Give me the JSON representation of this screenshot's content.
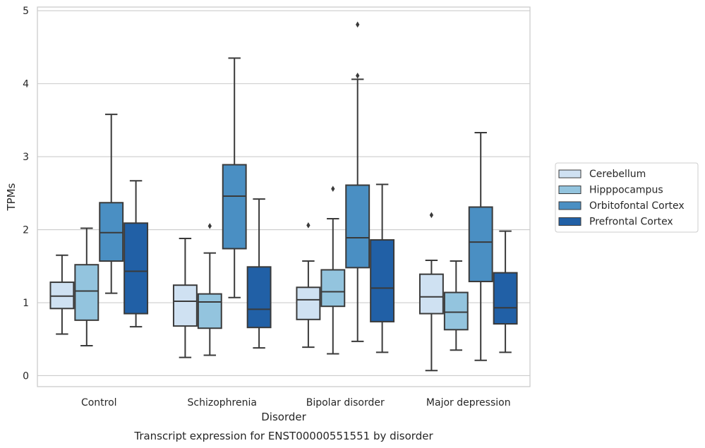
{
  "chart_data": {
    "type": "box",
    "title": "",
    "caption": "Transcript expression for ENST00000551551 by disorder",
    "xlabel": "Disorder",
    "ylabel": "TPMs",
    "ylim": [
      -0.15,
      5.05
    ],
    "yticks": [
      0,
      1,
      2,
      3,
      4,
      5
    ],
    "grid": "horizontal",
    "legend_position": "right",
    "categories": [
      "Control",
      "Schizophrenia",
      "Bipolar disorder",
      "Major depression"
    ],
    "series": [
      {
        "name": "Cerebellum",
        "color": "#cfe1f2",
        "boxes": [
          {
            "low": 0.57,
            "q1": 0.92,
            "median": 1.09,
            "q3": 1.28,
            "high": 1.65,
            "outliers": []
          },
          {
            "low": 0.25,
            "q1": 0.68,
            "median": 1.02,
            "q3": 1.24,
            "high": 1.88,
            "outliers": []
          },
          {
            "low": 0.39,
            "q1": 0.77,
            "median": 1.04,
            "q3": 1.21,
            "high": 1.57,
            "outliers": [
              2.06
            ]
          },
          {
            "low": 0.07,
            "q1": 0.85,
            "median": 1.08,
            "q3": 1.39,
            "high": 1.58,
            "outliers": [
              2.2
            ]
          }
        ]
      },
      {
        "name": "Hipppocampus",
        "color": "#93c4de",
        "boxes": [
          {
            "low": 0.41,
            "q1": 0.76,
            "median": 1.16,
            "q3": 1.52,
            "high": 2.02,
            "outliers": []
          },
          {
            "low": 0.28,
            "q1": 0.65,
            "median": 1.01,
            "q3": 1.12,
            "high": 1.68,
            "outliers": [
              2.05
            ]
          },
          {
            "low": 0.3,
            "q1": 0.95,
            "median": 1.15,
            "q3": 1.45,
            "high": 2.15,
            "outliers": [
              2.56
            ]
          },
          {
            "low": 0.35,
            "q1": 0.63,
            "median": 0.87,
            "q3": 1.14,
            "high": 1.57,
            "outliers": []
          }
        ]
      },
      {
        "name": "Orbitofontal Cortex",
        "color": "#4a8fc3",
        "boxes": [
          {
            "low": 1.13,
            "q1": 1.57,
            "median": 1.96,
            "q3": 2.37,
            "high": 3.58,
            "outliers": []
          },
          {
            "low": 1.07,
            "q1": 1.74,
            "median": 2.46,
            "q3": 2.89,
            "high": 4.35,
            "outliers": []
          },
          {
            "low": 0.47,
            "q1": 1.48,
            "median": 1.89,
            "q3": 2.61,
            "high": 4.06,
            "outliers": [
              4.81,
              4.11
            ]
          },
          {
            "low": 0.21,
            "q1": 1.29,
            "median": 1.83,
            "q3": 2.31,
            "high": 3.33,
            "outliers": []
          }
        ]
      },
      {
        "name": "Prefrontal Cortex",
        "color": "#2160a6",
        "boxes": [
          {
            "low": 0.67,
            "q1": 0.85,
            "median": 1.43,
            "q3": 2.09,
            "high": 2.67,
            "outliers": []
          },
          {
            "low": 0.38,
            "q1": 0.66,
            "median": 0.91,
            "q3": 1.49,
            "high": 2.42,
            "outliers": []
          },
          {
            "low": 0.32,
            "q1": 0.74,
            "median": 1.2,
            "q3": 1.86,
            "high": 2.62,
            "outliers": []
          },
          {
            "low": 0.32,
            "q1": 0.71,
            "median": 0.93,
            "q3": 1.41,
            "high": 1.98,
            "outliers": []
          }
        ]
      }
    ]
  }
}
